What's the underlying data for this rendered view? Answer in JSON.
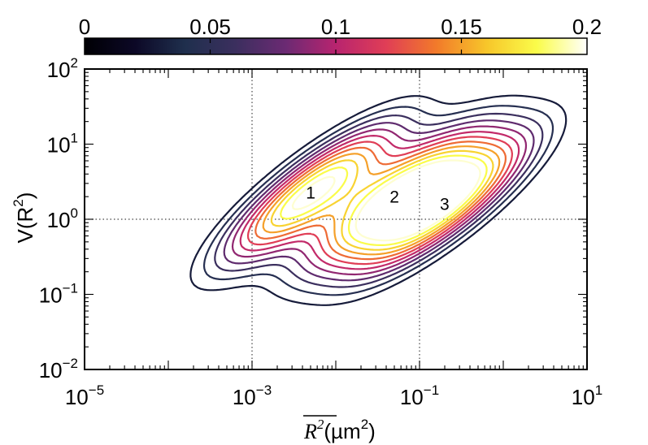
{
  "chart_data": {
    "type": "contour",
    "xscale": "log",
    "yscale": "log",
    "xlim": [
      1e-05,
      10
    ],
    "ylim": [
      0.01,
      100
    ],
    "x_ticks": [
      {
        "base": "10",
        "exp": "−5"
      },
      {
        "base": "10",
        "exp": "−3"
      },
      {
        "base": "10",
        "exp": "−1"
      },
      {
        "base": "10",
        "exp": "1"
      }
    ],
    "y_ticks": [
      {
        "base": "10",
        "exp": "−2"
      },
      {
        "base": "10",
        "exp": "−1"
      },
      {
        "base": "10",
        "exp": "0"
      },
      {
        "base": "10",
        "exp": "1"
      },
      {
        "base": "10",
        "exp": "2"
      }
    ],
    "xlabel": {
      "text": "R",
      "sup": "2",
      "unit": "(µm",
      "unit_sup": "2",
      "close": ")"
    },
    "ylabel": {
      "text": "V(R",
      "sup": "2",
      "close": ")"
    },
    "reference_lines": {
      "x": [
        0.001,
        0.1
      ],
      "y": [
        1
      ]
    },
    "colorbar": {
      "range": [
        0,
        0.2
      ],
      "labels": [
        "0",
        "0.05",
        "0.1",
        "0.15",
        "0.2"
      ],
      "colormap": "inferno"
    },
    "levels": [
      0.03,
      0.045,
      0.06,
      0.075,
      0.09,
      0.105,
      0.12,
      0.135,
      0.15,
      0.165,
      0.18,
      0.195
    ],
    "peaks": [
      {
        "label": "1",
        "log10_x": -2.3,
        "log10_y": 0.35,
        "peak_value": 0.2
      },
      {
        "label": "2",
        "log10_x": -1.3,
        "log10_y": 0.3,
        "peak_value": 0.2
      },
      {
        "label": "3",
        "log10_x": -0.7,
        "log10_y": 0.2,
        "peak_value": 0.2
      }
    ],
    "grid": false
  }
}
